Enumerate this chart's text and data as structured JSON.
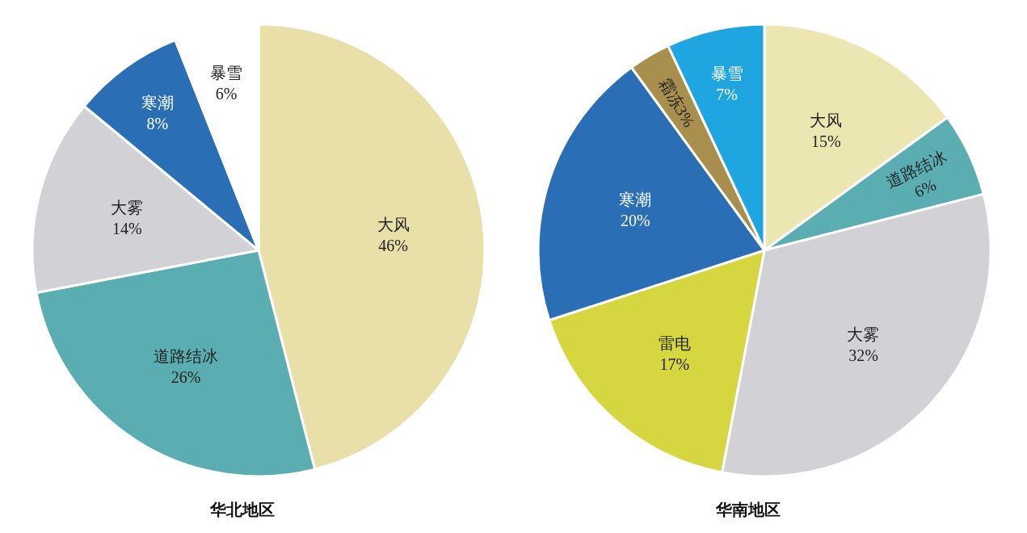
{
  "chart_data": [
    {
      "type": "pie",
      "title": "华北地区",
      "categories": [
        "大风",
        "道路结冰",
        "大雾",
        "寒潮",
        "暴雪"
      ],
      "values": [
        46,
        26,
        14,
        8,
        6
      ],
      "colors": [
        "#e8e0a8",
        "#5aaeb2",
        "#d2d2d6",
        "#2a6fb5",
        "#ffffff"
      ],
      "value_labels": [
        "46%",
        "26%",
        "14%",
        "8%",
        "6%"
      ]
    },
    {
      "type": "pie",
      "title": "华南地区",
      "categories": [
        "大风",
        "道路结冰",
        "大雾",
        "雷电",
        "寒潮",
        "霜冻",
        "暴雪"
      ],
      "values": [
        15,
        6,
        32,
        17,
        20,
        3,
        7
      ],
      "colors": [
        "#ece6b2",
        "#5aaeb2",
        "#d2d2d6",
        "#d6d640",
        "#2a6fb5",
        "#a88f4e",
        "#1fa6e0"
      ],
      "value_labels": [
        "15%",
        "6%",
        "32%",
        "17%",
        "20%",
        "3%",
        "7%"
      ]
    }
  ]
}
